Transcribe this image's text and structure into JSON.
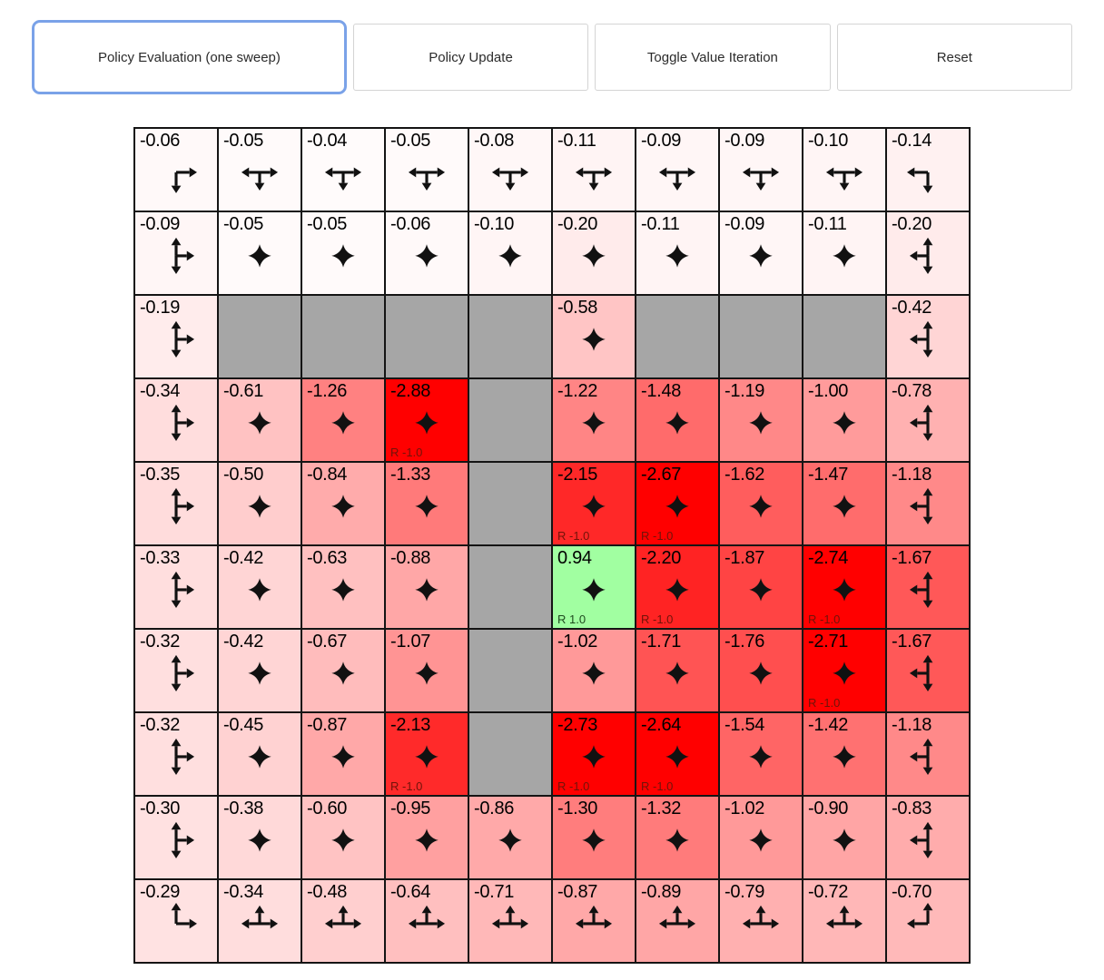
{
  "toolbar": {
    "buttons": [
      {
        "label": "Policy Evaluation (one sweep)",
        "focused": true
      },
      {
        "label": "Policy Update",
        "focused": false
      },
      {
        "label": "Toggle Value Iteration",
        "focused": false
      },
      {
        "label": "Reset",
        "focused": false
      }
    ]
  },
  "colors": {
    "focus_ring": "#7aa2e8",
    "button_border": "#d4d4d4",
    "grid_line": "#141414",
    "arrow": "#111111",
    "wall": "#a6a6a6",
    "reward_negative_text": "#701309",
    "reward_positive_text": "#1d4a1d"
  },
  "board": {
    "rows": 10,
    "cols": 10,
    "legend": "cells: v = state value (drives red/green shading), a = policy arrow directions (U up, D down, L left, R right), r = reward label, wall = obstacle",
    "cells": [
      [
        {
          "v": "-0.06",
          "a": "RD"
        },
        {
          "v": "-0.05",
          "a": "LRD"
        },
        {
          "v": "-0.04",
          "a": "LRD"
        },
        {
          "v": "-0.05",
          "a": "LRD"
        },
        {
          "v": "-0.08",
          "a": "LRD"
        },
        {
          "v": "-0.11",
          "a": "LRD"
        },
        {
          "v": "-0.09",
          "a": "LRD"
        },
        {
          "v": "-0.09",
          "a": "LRD"
        },
        {
          "v": "-0.10",
          "a": "LRD"
        },
        {
          "v": "-0.14",
          "a": "LD"
        }
      ],
      [
        {
          "v": "-0.09",
          "a": "URD"
        },
        {
          "v": "-0.05",
          "a": "ULRD"
        },
        {
          "v": "-0.05",
          "a": "ULRD"
        },
        {
          "v": "-0.06",
          "a": "ULRD"
        },
        {
          "v": "-0.10",
          "a": "ULRD"
        },
        {
          "v": "-0.20",
          "a": "ULRD"
        },
        {
          "v": "-0.11",
          "a": "ULRD"
        },
        {
          "v": "-0.09",
          "a": "ULRD"
        },
        {
          "v": "-0.11",
          "a": "ULRD"
        },
        {
          "v": "-0.20",
          "a": "ULD"
        }
      ],
      [
        {
          "v": "-0.19",
          "a": "URD"
        },
        {
          "wall": true
        },
        {
          "wall": true
        },
        {
          "wall": true
        },
        {
          "wall": true
        },
        {
          "v": "-0.58",
          "a": "ULRD"
        },
        {
          "wall": true
        },
        {
          "wall": true
        },
        {
          "wall": true
        },
        {
          "v": "-0.42",
          "a": "ULD"
        }
      ],
      [
        {
          "v": "-0.34",
          "a": "URD"
        },
        {
          "v": "-0.61",
          "a": "ULRD"
        },
        {
          "v": "-1.26",
          "a": "ULRD"
        },
        {
          "v": "-2.88",
          "a": "ULRD",
          "r": "R -1.0"
        },
        {
          "wall": true
        },
        {
          "v": "-1.22",
          "a": "ULRD"
        },
        {
          "v": "-1.48",
          "a": "ULRD"
        },
        {
          "v": "-1.19",
          "a": "ULRD"
        },
        {
          "v": "-1.00",
          "a": "ULRD"
        },
        {
          "v": "-0.78",
          "a": "ULD"
        }
      ],
      [
        {
          "v": "-0.35",
          "a": "URD"
        },
        {
          "v": "-0.50",
          "a": "ULRD"
        },
        {
          "v": "-0.84",
          "a": "ULRD"
        },
        {
          "v": "-1.33",
          "a": "ULRD"
        },
        {
          "wall": true
        },
        {
          "v": "-2.15",
          "a": "ULRD",
          "r": "R -1.0"
        },
        {
          "v": "-2.67",
          "a": "ULRD",
          "r": "R -1.0"
        },
        {
          "v": "-1.62",
          "a": "ULRD"
        },
        {
          "v": "-1.47",
          "a": "ULRD"
        },
        {
          "v": "-1.18",
          "a": "ULD"
        }
      ],
      [
        {
          "v": "-0.33",
          "a": "URD"
        },
        {
          "v": "-0.42",
          "a": "ULRD"
        },
        {
          "v": "-0.63",
          "a": "ULRD"
        },
        {
          "v": "-0.88",
          "a": "ULRD"
        },
        {
          "wall": true
        },
        {
          "v": "0.94",
          "a": "ULRD",
          "r": "R 1.0"
        },
        {
          "v": "-2.20",
          "a": "ULRD",
          "r": "R -1.0"
        },
        {
          "v": "-1.87",
          "a": "ULRD"
        },
        {
          "v": "-2.74",
          "a": "ULRD",
          "r": "R -1.0"
        },
        {
          "v": "-1.67",
          "a": "ULD"
        }
      ],
      [
        {
          "v": "-0.32",
          "a": "URD"
        },
        {
          "v": "-0.42",
          "a": "ULRD"
        },
        {
          "v": "-0.67",
          "a": "ULRD"
        },
        {
          "v": "-1.07",
          "a": "ULRD"
        },
        {
          "wall": true
        },
        {
          "v": "-1.02",
          "a": "ULRD"
        },
        {
          "v": "-1.71",
          "a": "ULRD"
        },
        {
          "v": "-1.76",
          "a": "ULRD"
        },
        {
          "v": "-2.71",
          "a": "ULRD",
          "r": "R -1.0"
        },
        {
          "v": "-1.67",
          "a": "ULD"
        }
      ],
      [
        {
          "v": "-0.32",
          "a": "URD"
        },
        {
          "v": "-0.45",
          "a": "ULRD"
        },
        {
          "v": "-0.87",
          "a": "ULRD"
        },
        {
          "v": "-2.13",
          "a": "ULRD",
          "r": "R -1.0"
        },
        {
          "wall": true
        },
        {
          "v": "-2.73",
          "a": "ULRD",
          "r": "R -1.0"
        },
        {
          "v": "-2.64",
          "a": "ULRD",
          "r": "R -1.0"
        },
        {
          "v": "-1.54",
          "a": "ULRD"
        },
        {
          "v": "-1.42",
          "a": "ULRD"
        },
        {
          "v": "-1.18",
          "a": "ULD"
        }
      ],
      [
        {
          "v": "-0.30",
          "a": "URD"
        },
        {
          "v": "-0.38",
          "a": "ULRD"
        },
        {
          "v": "-0.60",
          "a": "ULRD"
        },
        {
          "v": "-0.95",
          "a": "ULRD"
        },
        {
          "v": "-0.86",
          "a": "ULRD"
        },
        {
          "v": "-1.30",
          "a": "ULRD"
        },
        {
          "v": "-1.32",
          "a": "ULRD"
        },
        {
          "v": "-1.02",
          "a": "ULRD"
        },
        {
          "v": "-0.90",
          "a": "ULRD"
        },
        {
          "v": "-0.83",
          "a": "ULD"
        }
      ],
      [
        {
          "v": "-0.29",
          "a": "UR"
        },
        {
          "v": "-0.34",
          "a": "ULR"
        },
        {
          "v": "-0.48",
          "a": "ULR"
        },
        {
          "v": "-0.64",
          "a": "ULR"
        },
        {
          "v": "-0.71",
          "a": "ULR"
        },
        {
          "v": "-0.87",
          "a": "ULR"
        },
        {
          "v": "-0.89",
          "a": "ULR"
        },
        {
          "v": "-0.79",
          "a": "ULR"
        },
        {
          "v": "-0.72",
          "a": "ULR"
        },
        {
          "v": "-0.70",
          "a": "UL"
        }
      ]
    ]
  }
}
